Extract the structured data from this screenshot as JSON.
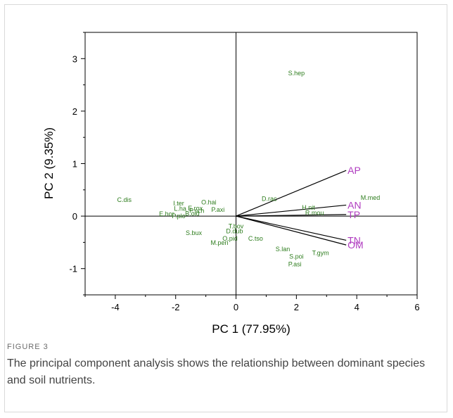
{
  "figure": {
    "label": "FIGURE 3",
    "caption": "The principal component analysis shows the relationship between dominant species and soil nutrients."
  },
  "chart_data": {
    "type": "scatter",
    "title": "",
    "xlabel": "PC 1 (77.95%)",
    "ylabel": "PC 2 (9.35%)",
    "xlim": [
      -5,
      6
    ],
    "ylim": [
      -1.5,
      3.5
    ],
    "xticks": [
      -4,
      -2,
      0,
      2,
      4,
      6
    ],
    "yticks": [
      -1,
      0,
      1,
      2,
      3
    ],
    "grid": false,
    "reference_lines": [
      "x=0",
      "y=0"
    ],
    "colors": {
      "species": "#2e7d1e",
      "vectors": "#b03cc0",
      "arrows": "#000000"
    },
    "species": [
      {
        "name": "S.hep",
        "x": 2.0,
        "y": 2.72
      },
      {
        "name": "C.dis",
        "x": -3.7,
        "y": 0.31
      },
      {
        "name": "I.ter",
        "x": -1.9,
        "y": 0.24
      },
      {
        "name": "L.ha",
        "x": -1.85,
        "y": 0.14
      },
      {
        "name": "E.rox",
        "x": -1.35,
        "y": 0.15
      },
      {
        "name": "O.hai",
        "x": -0.9,
        "y": 0.26
      },
      {
        "name": "P.axi",
        "x": -0.6,
        "y": 0.12
      },
      {
        "name": "E.hor",
        "x": -2.3,
        "y": 0.04
      },
      {
        "name": "P.plo",
        "x": -1.9,
        "y": 0.0
      },
      {
        "name": "B.oid",
        "x": -1.45,
        "y": 0.05
      },
      {
        "name": "P.sch",
        "x": -1.3,
        "y": 0.1
      },
      {
        "name": "S.bux",
        "x": -1.4,
        "y": -0.32
      },
      {
        "name": "D.rac",
        "x": 1.1,
        "y": 0.33
      },
      {
        "name": "H.nit",
        "x": 2.4,
        "y": 0.16
      },
      {
        "name": "R.mou",
        "x": 2.6,
        "y": 0.06
      },
      {
        "name": "M.med",
        "x": 4.45,
        "y": 0.35
      },
      {
        "name": "T.bov",
        "x": 0.0,
        "y": -0.19
      },
      {
        "name": "D.dub",
        "x": -0.05,
        "y": -0.29
      },
      {
        "name": "O.pid",
        "x": -0.2,
        "y": -0.43
      },
      {
        "name": "C.tso",
        "x": 0.65,
        "y": -0.43
      },
      {
        "name": "M.peri",
        "x": -0.55,
        "y": -0.51
      },
      {
        "name": "S.lan",
        "x": 1.55,
        "y": -0.63
      },
      {
        "name": "S.poi",
        "x": 2.0,
        "y": -0.77
      },
      {
        "name": "P.asi",
        "x": 1.95,
        "y": -0.92
      },
      {
        "name": "T.gym",
        "x": 2.8,
        "y": -0.7
      }
    ],
    "vectors": [
      {
        "name": "AP",
        "x": 3.65,
        "y": 0.87
      },
      {
        "name": "AN",
        "x": 3.65,
        "y": 0.21
      },
      {
        "name": "TP",
        "x": 3.65,
        "y": 0.03
      },
      {
        "name": "TN",
        "x": 3.65,
        "y": -0.46
      },
      {
        "name": "OM",
        "x": 3.65,
        "y": -0.55
      }
    ]
  }
}
